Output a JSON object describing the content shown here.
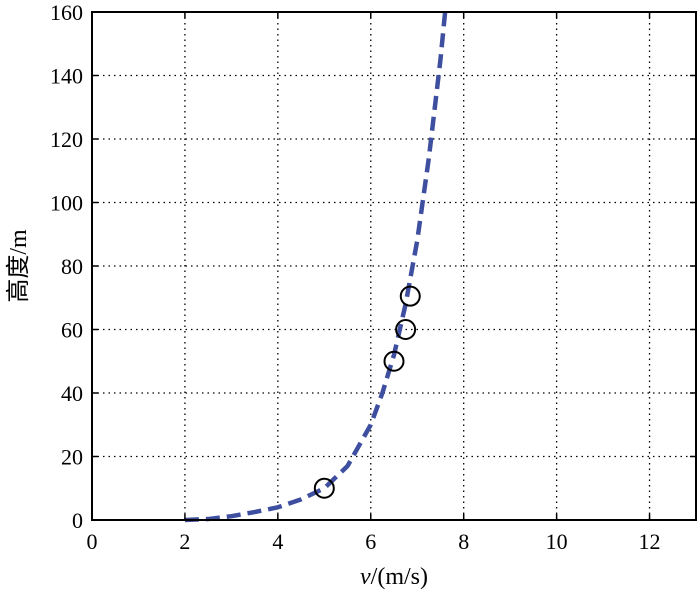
{
  "chart_data": {
    "type": "line",
    "xlabel": "v/(m/s)",
    "xlabel_italic": "v",
    "xlabel_rest": "/(m/s)",
    "ylabel": "高度/m",
    "xlim": [
      0,
      13
    ],
    "ylim": [
      0,
      160
    ],
    "xticks": [
      0,
      2,
      4,
      6,
      8,
      10,
      12
    ],
    "yticks": [
      0,
      20,
      40,
      60,
      80,
      100,
      120,
      140,
      160
    ],
    "grid": true,
    "series": [
      {
        "style": "dashed-line",
        "color": "#3f4fa0",
        "x": [
          2.0,
          2.5,
          3.0,
          3.5,
          4.0,
          4.5,
          5.0,
          5.5,
          6.0,
          6.25,
          6.5,
          6.75,
          7.0,
          7.25,
          7.5,
          7.6
        ],
        "y": [
          0,
          0.3,
          1.2,
          2.5,
          4.0,
          6.5,
          10,
          17,
          30,
          40,
          52,
          68,
          88,
          114,
          145,
          160
        ]
      },
      {
        "style": "circle-markers",
        "color": "#000000",
        "x": [
          5.0,
          6.5,
          6.75,
          6.85
        ],
        "y": [
          10,
          50,
          60,
          70.5
        ]
      }
    ]
  }
}
